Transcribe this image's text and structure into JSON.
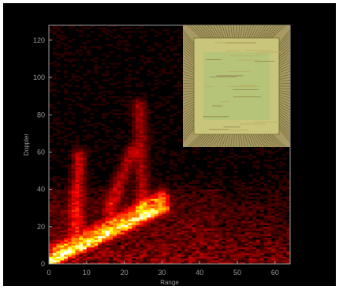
{
  "chart_data": {
    "type": "heatmap",
    "xlabel": "Range",
    "ylabel": "Doppler",
    "xlim": [
      0,
      64
    ],
    "ylim": [
      0,
      128
    ],
    "xticks": [
      0,
      10,
      20,
      30,
      40,
      50,
      60
    ],
    "yticks": [
      0,
      20,
      40,
      60,
      80,
      100,
      120
    ],
    "colormap": "hot",
    "background": "#000000",
    "axis_color": "#9a9a9a",
    "grid": false,
    "legend": "none",
    "hotspots": [
      {
        "from": [
          1,
          2
        ],
        "to": [
          30,
          30
        ],
        "intensity": 1.0
      },
      {
        "from": [
          2,
          8
        ],
        "to": [
          30,
          36
        ],
        "intensity": 0.55
      },
      {
        "from": [
          7,
          20
        ],
        "to": [
          8,
          58
        ],
        "intensity": 0.4
      },
      {
        "from": [
          16,
          30
        ],
        "to": [
          22,
          60
        ],
        "intensity": 0.35
      },
      {
        "from": [
          25,
          30
        ],
        "to": [
          24,
          85
        ],
        "intensity": 0.3
      }
    ],
    "inset": {
      "kind": "microchip-photo",
      "position": "top-right",
      "colors": {
        "frame": "#a89a62",
        "die": "#c9c57a",
        "die_center": "#a6c27a"
      }
    }
  }
}
